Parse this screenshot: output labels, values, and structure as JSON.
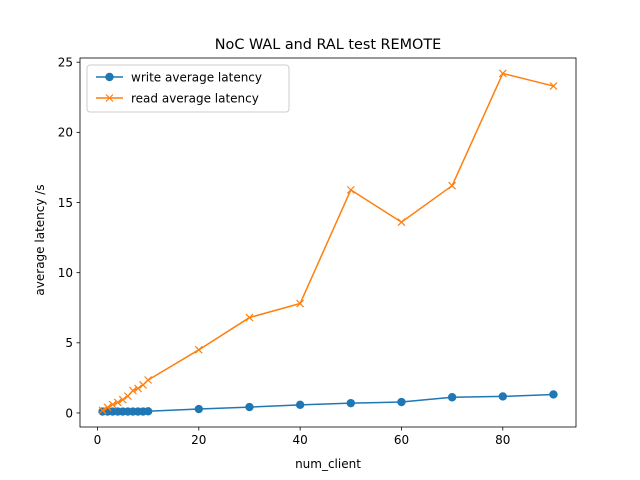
{
  "chart_data": {
    "type": "line",
    "title": "NoC WAL and RAL test REMOTE",
    "xlabel": "num_client",
    "ylabel": "average latency /s",
    "xlim": [
      -3.45,
      94.45
    ],
    "ylim": [
      -1.0,
      25.3
    ],
    "x_ticks": [
      0,
      20,
      40,
      60,
      80
    ],
    "y_ticks": [
      0,
      5,
      10,
      15,
      20,
      25
    ],
    "grid": false,
    "legend_position": "top-left",
    "series": [
      {
        "name": "write average latency",
        "color": "#1f77b4",
        "marker": "circle",
        "x": [
          1,
          2,
          3,
          4,
          5,
          6,
          7,
          8,
          9,
          10,
          20,
          30,
          40,
          50,
          60,
          70,
          80,
          90
        ],
        "y": [
          0.1,
          0.1,
          0.1,
          0.1,
          0.1,
          0.1,
          0.1,
          0.1,
          0.1,
          0.12,
          0.28,
          0.42,
          0.58,
          0.7,
          0.78,
          1.12,
          1.18,
          1.32
        ]
      },
      {
        "name": "read average latency",
        "color": "#ff7f0e",
        "marker": "x",
        "x": [
          1,
          2,
          3,
          4,
          5,
          6,
          7,
          8,
          9,
          10,
          20,
          30,
          40,
          50,
          60,
          70,
          80,
          90
        ],
        "y": [
          0.18,
          0.4,
          0.6,
          0.75,
          0.95,
          1.2,
          1.6,
          1.75,
          2.0,
          2.35,
          4.5,
          6.8,
          7.8,
          15.9,
          13.6,
          16.2,
          24.2,
          23.3
        ]
      }
    ]
  }
}
